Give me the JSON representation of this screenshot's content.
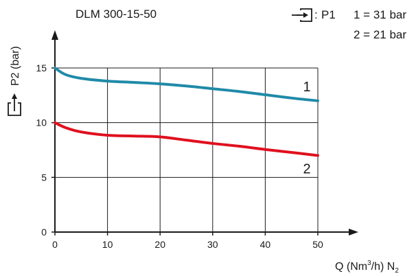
{
  "chart_data": {
    "type": "line",
    "title": "DLM 300-15-50",
    "inlet_pressure_label": "P1",
    "inlet_pressure_values": [
      "1 = 31 bar",
      "2 = 21 bar"
    ],
    "ylabel": "P2 (bar)",
    "xlabel_main": "Q (Nm",
    "xlabel_sup": "3",
    "xlabel_mid": "/h) N",
    "xlabel_sub": "2",
    "xlim": [
      0,
      50
    ],
    "ylim": [
      0,
      17.5
    ],
    "x_ticks": [
      0,
      10,
      20,
      30,
      40,
      50
    ],
    "y_ticks": [
      0,
      5,
      10,
      15
    ],
    "grid": true,
    "grid_x_range": [
      0,
      50
    ],
    "grid_y_range": [
      0,
      15
    ],
    "series": [
      {
        "name": "1",
        "color": "#1f8aa8",
        "x": [
          0,
          2,
          5,
          10,
          15,
          20,
          25,
          30,
          35,
          40,
          45,
          50
        ],
        "y": [
          15,
          14.4,
          14.05,
          13.8,
          13.68,
          13.55,
          13.35,
          13.1,
          12.85,
          12.55,
          12.25,
          12
        ]
      },
      {
        "name": "2",
        "color": "#e0101e",
        "x": [
          0,
          2,
          5,
          10,
          15,
          20,
          25,
          30,
          35,
          40,
          45,
          50
        ],
        "y": [
          10,
          9.55,
          9.15,
          8.85,
          8.78,
          8.7,
          8.4,
          8.1,
          7.85,
          7.55,
          7.28,
          7
        ]
      }
    ],
    "icons": [
      "inlet-pressure-icon",
      "outlet-pressure-icon"
    ]
  }
}
